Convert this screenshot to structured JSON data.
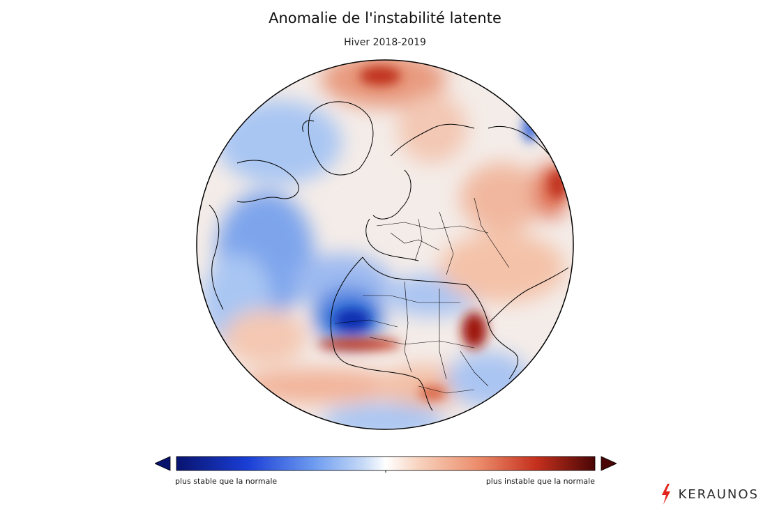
{
  "map": {
    "title": "Anomalie de l'instabilité latente",
    "subtitle": "Hiver 2018-2019"
  },
  "colorbar": {
    "label_low": "plus stable que la normale",
    "label_high": "plus instable que la normale",
    "colors": {
      "dark_blue": "#08136e",
      "blue": "#2e6fe0",
      "light_blue": "#b9d3f7",
      "white": "#ffffff",
      "light_red": "#f7c7ae",
      "red": "#d8442c",
      "dark_red": "#4a0606"
    }
  },
  "brand": {
    "name": "KERAUNOS",
    "accent": "#e2241c"
  }
}
